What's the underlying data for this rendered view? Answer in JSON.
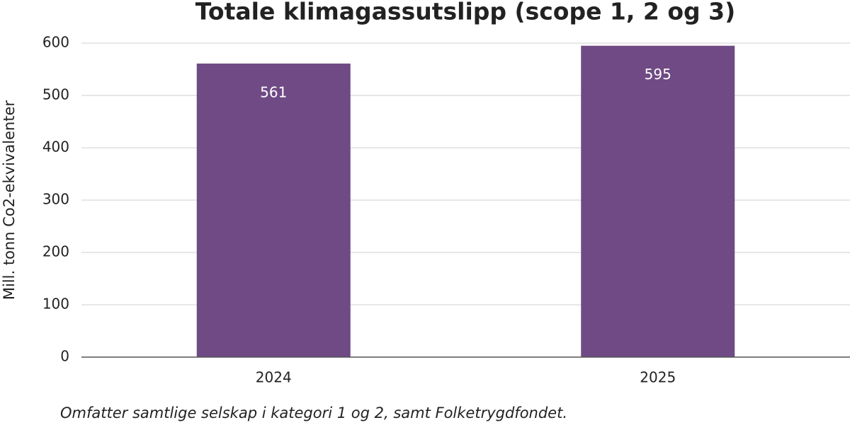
{
  "chart_data": {
    "type": "bar",
    "title": "Totale klimagassutslipp (scope 1, 2 og 3)",
    "y_label": "Mill. tonn Co2-ekvivalenter",
    "note": "Omfatter samtlige selskap i kategori 1 og 2, samt Folketrygdfondet.",
    "categories": [
      "2024",
      "2025"
    ],
    "values": [
      561,
      595
    ],
    "color": "#6f4a84",
    "ylim": [
      0,
      600
    ],
    "yticks": [
      0,
      100,
      200,
      300,
      400,
      500,
      600
    ],
    "grid": true
  }
}
